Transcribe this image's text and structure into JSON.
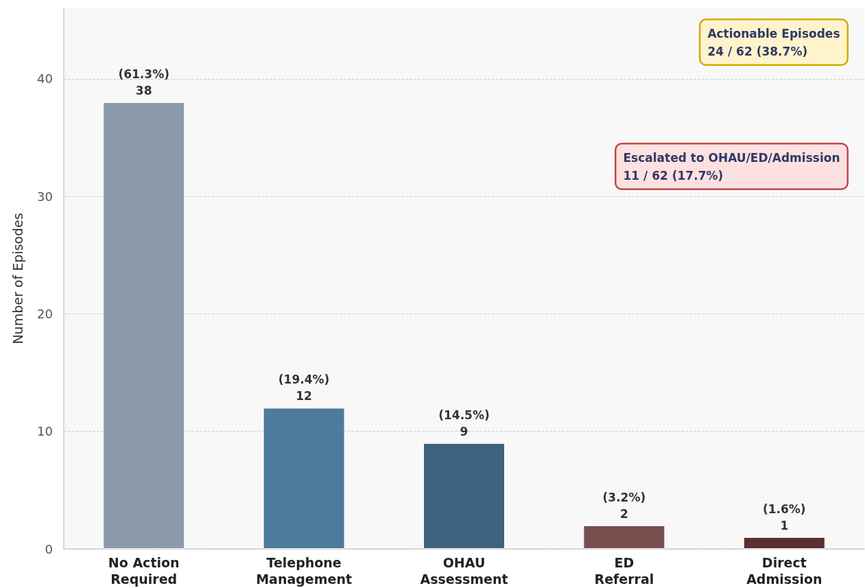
{
  "chart_data": {
    "type": "bar",
    "ylabel": "Number of Episodes",
    "categories": [
      "No Action\nRequired",
      "Telephone\nManagement",
      "OHAU\nAssessment",
      "ED\nReferral",
      "Direct\nAdmission"
    ],
    "values": [
      38,
      12,
      9,
      2,
      1
    ],
    "colors": [
      "#8a9aab",
      "#4e7b9b",
      "#3d637e",
      "#7a4e4e",
      "#5c2e2e"
    ],
    "value_labels": [
      "(61.3%)\n38",
      "(19.4%)\n12",
      "(14.5%)\n9",
      "(3.2%)\n2",
      "(1.6%)\n1"
    ],
    "ylim": [
      0,
      46
    ],
    "yticks": [
      0,
      10,
      20,
      30,
      40
    ],
    "grid": "y",
    "annotations": [
      "Actionable Episodes\n24 / 62 (38.7%)",
      "Escalated to OHAU/ED/Admission\n11 / 62 (17.7%)"
    ]
  }
}
